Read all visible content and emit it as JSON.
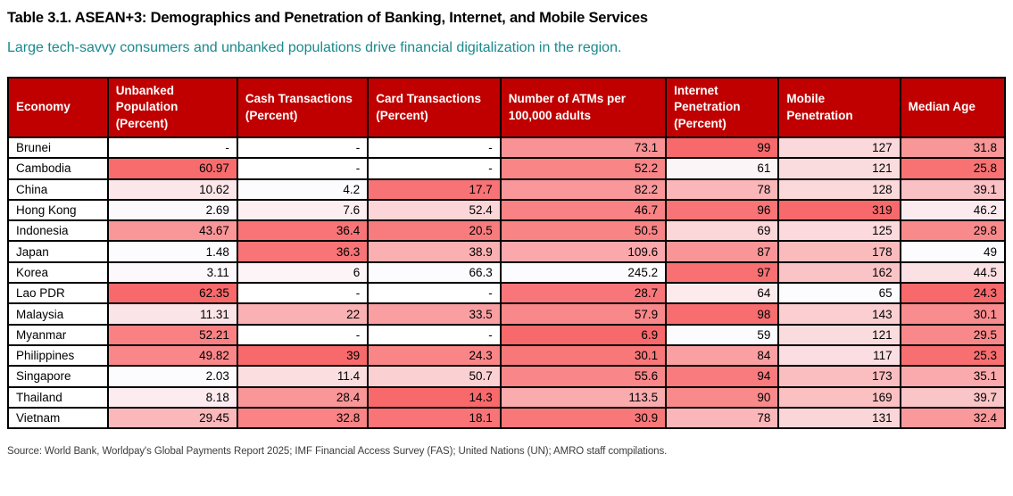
{
  "page": {
    "title": "Table 3.1. ASEAN+3: Demographics and Penetration of Banking, Internet, and Mobile Services",
    "subtitle": "Large tech-savvy consumers and unbanked populations drive financial digitalization in the region.",
    "source": "Source: World Bank, Worldpay's Global Payments Report 2025; IMF Financial Access Survey (FAS); United Nations (UN); AMRO staff compilations."
  },
  "colors": {
    "header_bg": "#C00000",
    "header_text": "#FFFFFF",
    "heat_white": "#FCFCFF",
    "heat_red": "#F8696B",
    "subtitle_teal": "#1B898D",
    "border": "#000000"
  },
  "chart_data": {
    "type": "table",
    "missing_label": "-",
    "columns": [
      {
        "label": "Economy",
        "width": "10.0%",
        "align": "left",
        "heat": "none"
      },
      {
        "label": "Unbanked Population (Percent)",
        "width": "13.0%",
        "align": "right",
        "heat": "red_at_max"
      },
      {
        "label": "Cash Transactions (Percent)",
        "width": "13.1%",
        "align": "right",
        "heat": "red_at_max"
      },
      {
        "label": "Card Transactions (Percent)",
        "width": "13.3%",
        "align": "right",
        "heat": "red_at_min"
      },
      {
        "label": "Number of ATMs per 100,000 adults",
        "width": "16.6%",
        "align": "right",
        "heat": "red_at_min"
      },
      {
        "label": "Internet Penetration (Percent)",
        "width": "11.3%",
        "align": "right",
        "heat": "red_at_max"
      },
      {
        "label": "Mobile Penetration",
        "width": "12.2%",
        "align": "right",
        "heat": "red_at_max"
      },
      {
        "label": "Median Age",
        "width": "10.5%",
        "align": "right",
        "heat": "red_at_min"
      }
    ],
    "rows": [
      [
        "Brunei",
        null,
        null,
        null,
        73.1,
        99,
        127,
        31.8
      ],
      [
        "Cambodia",
        60.97,
        null,
        null,
        52.2,
        61,
        121,
        25.8
      ],
      [
        "China",
        10.62,
        4.2,
        17.7,
        82.2,
        78,
        128,
        39.1
      ],
      [
        "Hong Kong",
        2.69,
        7.6,
        52.4,
        46.7,
        96,
        319,
        46.2
      ],
      [
        "Indonesia",
        43.67,
        36.4,
        20.5,
        50.5,
        69,
        125,
        29.8
      ],
      [
        "Japan",
        1.48,
        36.3,
        38.9,
        109.6,
        87,
        178,
        49
      ],
      [
        "Korea",
        3.11,
        6,
        66.3,
        245.2,
        97,
        162,
        44.5
      ],
      [
        "Lao PDR",
        62.35,
        null,
        null,
        28.7,
        64,
        65,
        24.3
      ],
      [
        "Malaysia",
        11.31,
        22,
        33.5,
        57.9,
        98,
        143,
        30.1
      ],
      [
        "Myanmar",
        52.21,
        null,
        null,
        6.9,
        59,
        121,
        29.5
      ],
      [
        "Philippines",
        49.82,
        39,
        24.3,
        30.1,
        84,
        117,
        25.3
      ],
      [
        "Singapore",
        2.03,
        11.4,
        50.7,
        55.6,
        94,
        173,
        35.1
      ],
      [
        "Thailand",
        8.18,
        28.4,
        14.3,
        113.5,
        90,
        169,
        39.7
      ],
      [
        "Vietnam",
        29.45,
        32.8,
        18.1,
        30.9,
        78,
        131,
        32.4
      ]
    ]
  }
}
